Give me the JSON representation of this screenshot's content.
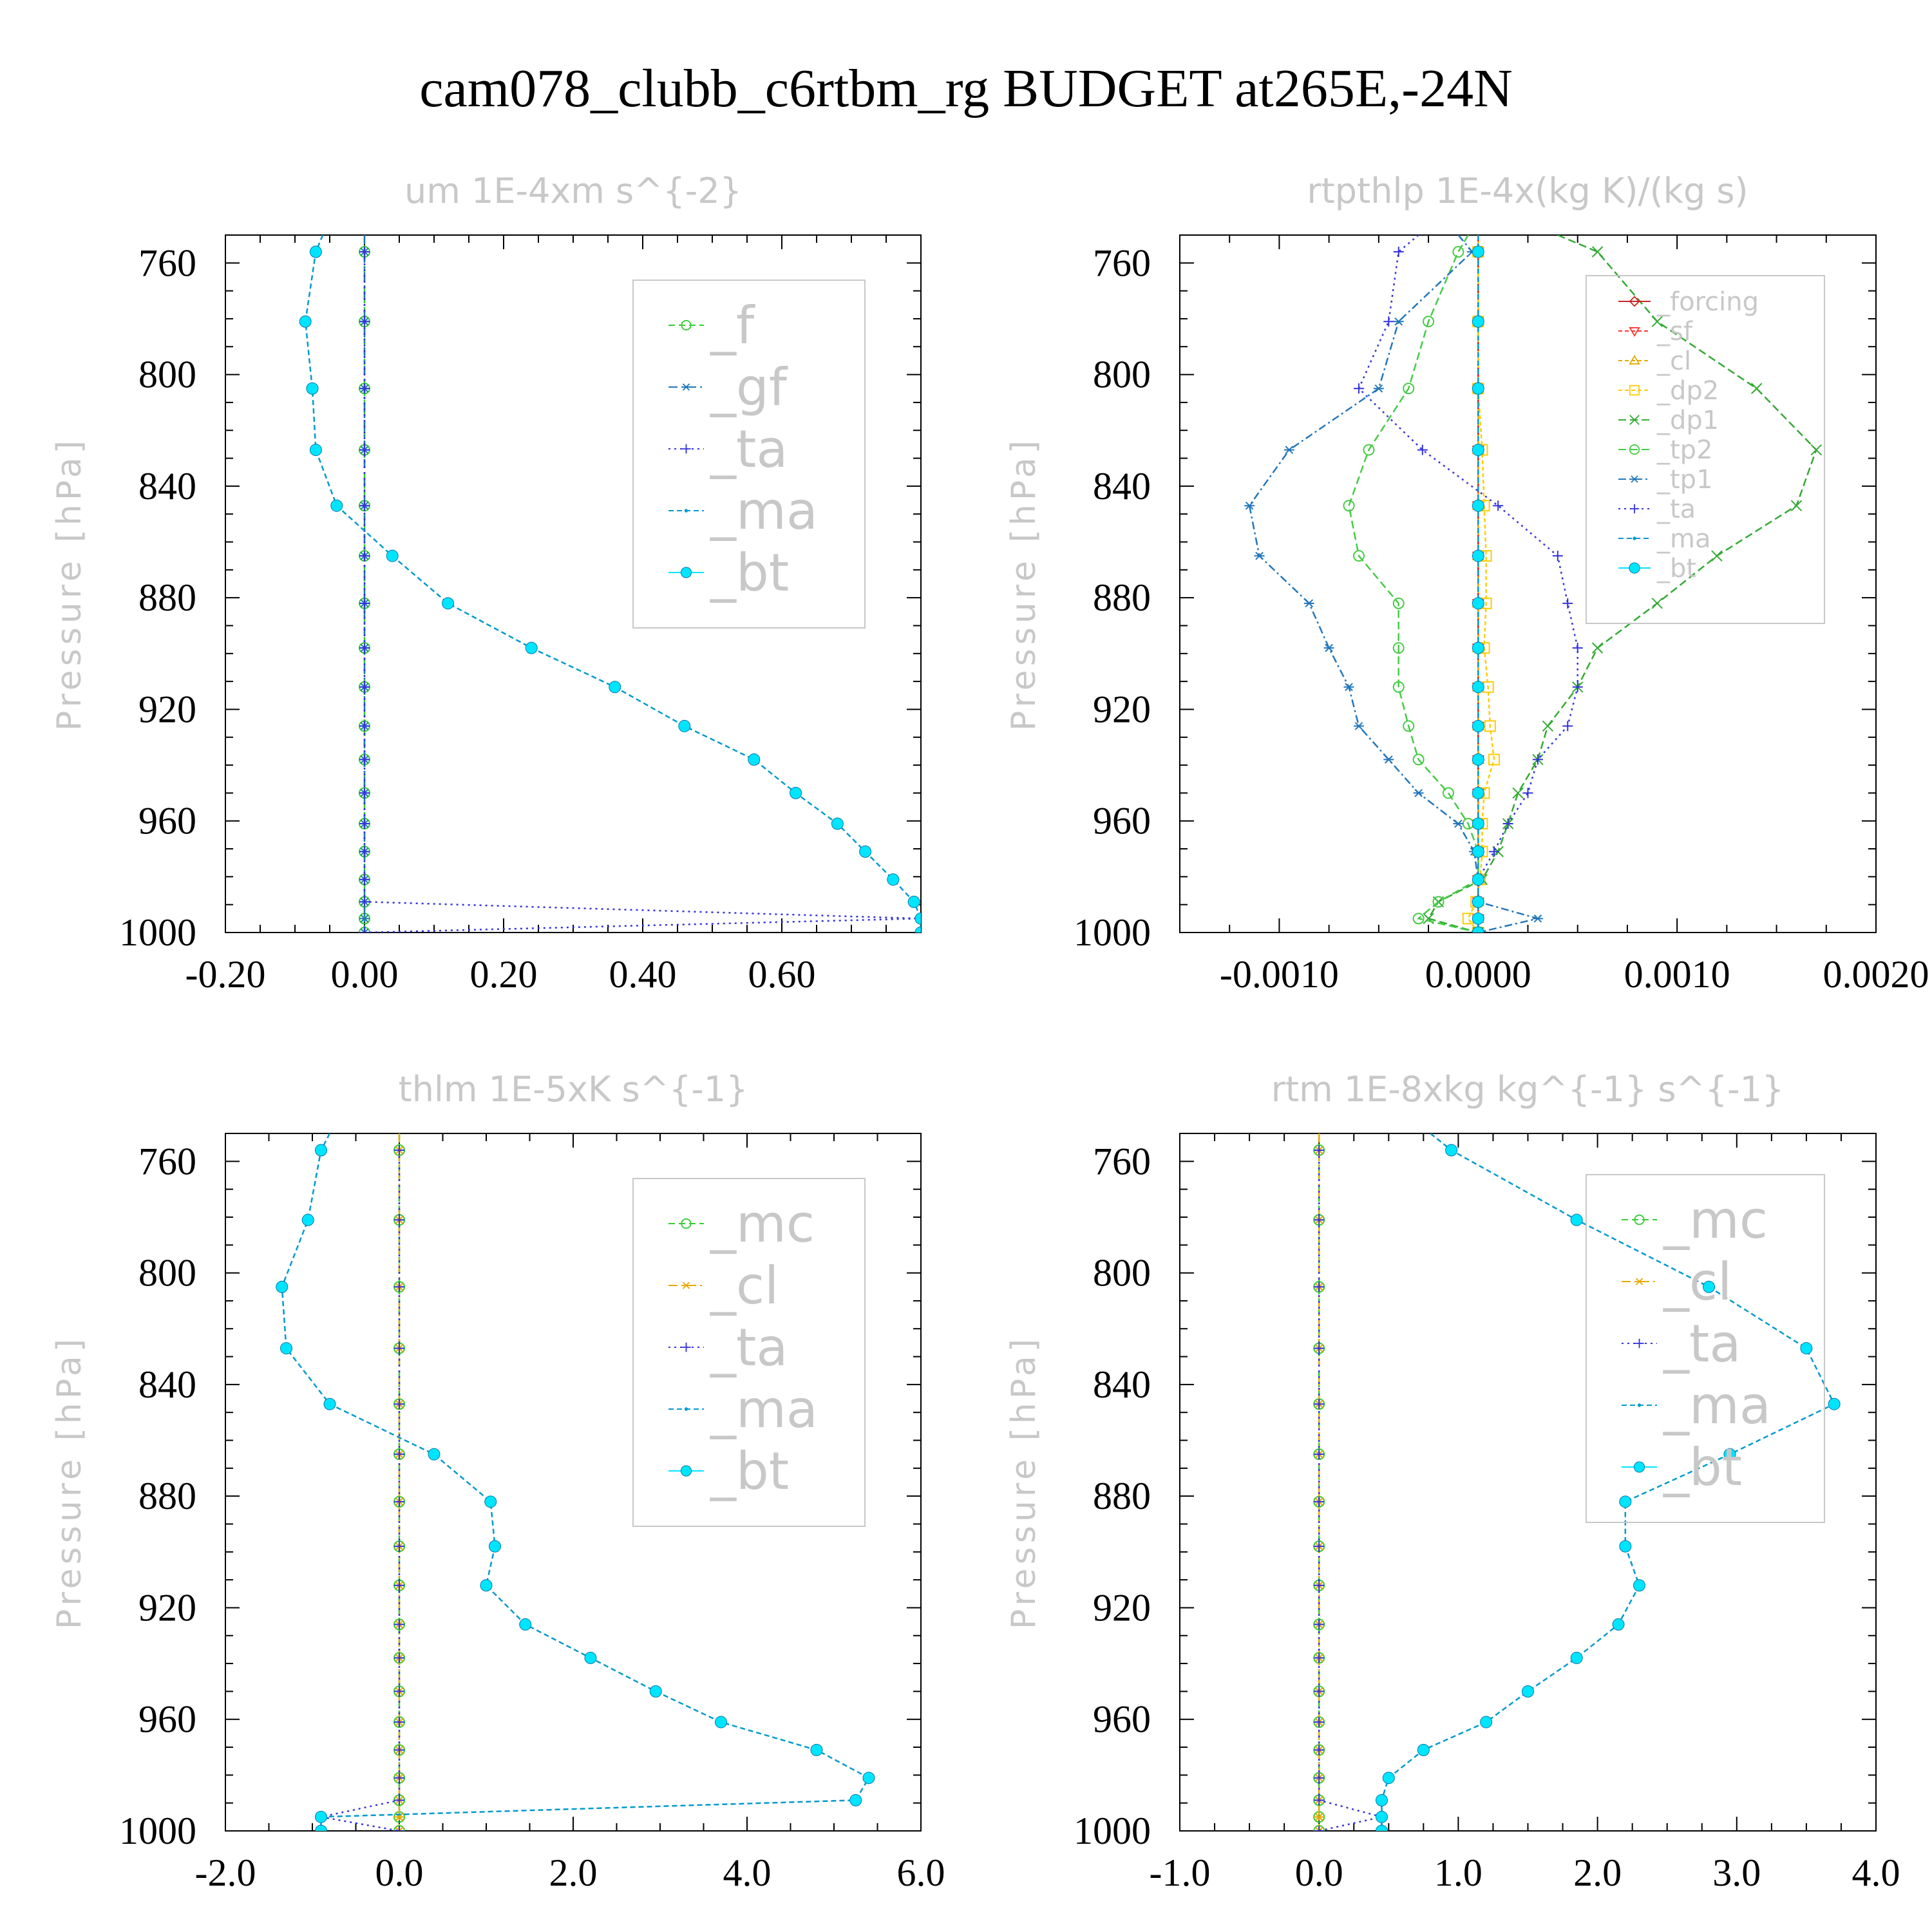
{
  "title": "cam078_clubb_c6rtbm_rg  BUDGET at265E,-24N",
  "ylabel": "Pressure [hPa]",
  "colors": {
    "_f": "#33cc33",
    "_gf": "#1f77b4",
    "_ta": "#3333dd",
    "_ma": "#009acd",
    "_bt": "#00e5ff",
    "_forcing": "#cc2222",
    "_sf": "#ff3333",
    "_cl": "#e6a800",
    "_dp2": "#ffcc00",
    "_dp1": "#33aa33",
    "_tp2": "#44cc44",
    "_tp1": "#2277bb",
    "_mc": "#33cc33"
  },
  "chart_data": [
    {
      "type": "line",
      "title": "um  1E-4xm s^{-2}",
      "xlabel": "",
      "ylabel": "Pressure [hPa]",
      "xlim": [
        -0.2,
        0.8
      ],
      "ylim": [
        1000,
        750
      ],
      "xticks": [
        "-0.20",
        "0.00",
        "0.20",
        "0.40",
        "0.60"
      ],
      "xtickvals": [
        -0.2,
        0,
        0.2,
        0.4,
        0.6
      ],
      "yticks": [
        760,
        800,
        840,
        880,
        920,
        960,
        1000
      ],
      "legend": {
        "size": "large"
      },
      "levels": [
        750,
        756,
        781,
        805,
        827,
        847,
        865,
        882,
        898,
        912,
        926,
        938,
        950,
        961,
        971,
        981,
        989,
        995,
        1000
      ],
      "series": [
        {
          "name": "_f",
          "marker": "circle-open",
          "dash": "10,6",
          "values": [
            0,
            0,
            0,
            0,
            0,
            0,
            0,
            0,
            0,
            0,
            0,
            0,
            0,
            0,
            0,
            0,
            0,
            0,
            0
          ]
        },
        {
          "name": "_gf",
          "marker": "star",
          "dash": "14,6,3,6",
          "values": [
            0,
            0,
            0,
            0,
            0,
            0,
            0,
            0,
            0,
            0,
            0,
            0,
            0,
            0,
            0,
            0,
            0,
            0,
            0
          ]
        },
        {
          "name": "_ta",
          "marker": "plus",
          "dash": "3,6",
          "values": [
            null,
            0,
            0,
            0,
            0,
            0,
            0,
            0,
            0,
            0,
            0,
            0,
            0,
            0,
            0,
            0,
            0,
            0.8,
            0
          ]
        },
        {
          "name": "_ma",
          "marker": "dot",
          "dash": "8,5",
          "values": [
            -0.06,
            -0.07,
            -0.085,
            -0.075,
            -0.07,
            -0.04,
            0.04,
            0.12,
            0.24,
            0.36,
            0.46,
            0.56,
            0.62,
            0.68,
            0.72,
            0.76,
            0.79,
            0.8,
            0.8
          ]
        },
        {
          "name": "_bt",
          "marker": "filled",
          "dash": "",
          "values": [
            null,
            -0.07,
            -0.085,
            -0.075,
            -0.07,
            -0.04,
            0.04,
            0.12,
            0.24,
            0.36,
            0.46,
            0.56,
            0.62,
            0.68,
            0.72,
            0.76,
            0.79,
            0.8,
            0.8
          ]
        }
      ]
    },
    {
      "type": "line",
      "title": "rtpthlp  1E-4x(kg K)/(kg s)",
      "xlabel": "",
      "ylabel": "Pressure [hPa]",
      "xlim": [
        -0.0015,
        0.002
      ],
      "ylim": [
        1000,
        750
      ],
      "xticks": [
        "-0.0010",
        "0.0000",
        "0.0010",
        "0.0020"
      ],
      "xtickvals": [
        -0.001,
        0,
        0.001,
        0.002
      ],
      "yticks": [
        760,
        800,
        840,
        880,
        920,
        960,
        1000
      ],
      "legend": {
        "size": "small"
      },
      "levels": [
        750,
        756,
        781,
        805,
        827,
        847,
        865,
        882,
        898,
        912,
        926,
        938,
        950,
        961,
        971,
        981,
        989,
        995,
        1000
      ],
      "series": [
        {
          "name": "_forcing",
          "marker": "diamond-open",
          "dash": "",
          "values": [
            0,
            0,
            0,
            0,
            0,
            0,
            0,
            0,
            0,
            0,
            0,
            0,
            0,
            0,
            0,
            0,
            0,
            0,
            0
          ]
        },
        {
          "name": "_sf",
          "marker": "tri-down",
          "dash": "6,4",
          "values": [
            0,
            0,
            0,
            0,
            0,
            0,
            0,
            0,
            0,
            0,
            0,
            0,
            0,
            0,
            0,
            0,
            0,
            0,
            0
          ]
        },
        {
          "name": "_cl",
          "marker": "tri-up",
          "dash": "6,4",
          "values": [
            0,
            0,
            0,
            0,
            0,
            0,
            0,
            0,
            0,
            0,
            0,
            0,
            0,
            0,
            0,
            0,
            0,
            0,
            0
          ]
        },
        {
          "name": "_dp2",
          "marker": "square-open",
          "dash": "6,4",
          "values": [
            0,
            0,
            0,
            0,
            2e-05,
            3e-05,
            4e-05,
            4e-05,
            3e-05,
            5e-05,
            6e-05,
            8e-05,
            3e-05,
            2e-05,
            2e-05,
            1e-05,
            -1e-05,
            -5e-05,
            0
          ]
        },
        {
          "name": "_dp1",
          "marker": "x",
          "dash": "12,6",
          "values": [
            0.0004,
            0.0006,
            0.0009,
            0.0014,
            0.0017,
            0.0016,
            0.0012,
            0.0009,
            0.0006,
            0.0005,
            0.00035,
            0.0003,
            0.0002,
            0.00015,
            0.0001,
            2e-05,
            -0.0002,
            -0.00025,
            0
          ]
        },
        {
          "name": "_tp2",
          "marker": "circle-open",
          "dash": "12,6",
          "values": [
            -5e-05,
            -0.0001,
            -0.00025,
            -0.00035,
            -0.00055,
            -0.00065,
            -0.0006,
            -0.0004,
            -0.0004,
            -0.0004,
            -0.00035,
            -0.0003,
            -0.00015,
            -5e-05,
            0,
            0,
            -0.0002,
            -0.0003,
            0
          ]
        },
        {
          "name": "_tp1",
          "marker": "star",
          "dash": "12,5,3,5",
          "values": [
            -0.0001,
            -3e-05,
            -0.0004,
            -0.0005,
            -0.00095,
            -0.00115,
            -0.0011,
            -0.00085,
            -0.00075,
            -0.00065,
            -0.0006,
            -0.00045,
            -0.0003,
            -0.0001,
            -2e-05,
            0,
            0,
            0.0003,
            0
          ]
        },
        {
          "name": "_ta",
          "marker": "plus",
          "dash": "3,6",
          "values": [
            -0.0003,
            -0.0004,
            -0.00045,
            -0.0006,
            -0.00028,
            0.0001,
            0.0004,
            0.00045,
            0.0005,
            0.0005,
            0.00045,
            0.0003,
            0.00025,
            0.00015,
            8e-05,
            0,
            0,
            0,
            0
          ]
        },
        {
          "name": "_ma",
          "marker": "dot",
          "dash": "8,5",
          "values": [
            0,
            0,
            0,
            0,
            0,
            0,
            0,
            0,
            0,
            0,
            0,
            0,
            0,
            0,
            0,
            0,
            0,
            0,
            0
          ]
        },
        {
          "name": "_bt",
          "marker": "filled",
          "dash": "",
          "values": [
            null,
            0,
            0,
            0,
            0,
            0,
            0,
            0,
            0,
            0,
            0,
            0,
            0,
            0,
            0,
            0,
            0,
            0,
            0
          ]
        }
      ]
    },
    {
      "type": "line",
      "title": "thlm  1E-5xK s^{-1}",
      "xlabel": "",
      "ylabel": "Pressure [hPa]",
      "xlim": [
        -2,
        6
      ],
      "ylim": [
        1000,
        750
      ],
      "xticks": [
        "-2.0",
        "0.0",
        "2.0",
        "4.0",
        "6.0"
      ],
      "xtickvals": [
        -2,
        0,
        2,
        4,
        6
      ],
      "yticks": [
        760,
        800,
        840,
        880,
        920,
        960,
        1000
      ],
      "legend": {
        "size": "large"
      },
      "levels": [
        750,
        756,
        781,
        805,
        827,
        847,
        865,
        882,
        898,
        912,
        926,
        938,
        950,
        961,
        971,
        981,
        989,
        995,
        1000
      ],
      "series": [
        {
          "name": "_mc",
          "marker": "circle-open",
          "dash": "10,6",
          "values": [
            0,
            0,
            0,
            0,
            0,
            0,
            0,
            0,
            0,
            0,
            0,
            0,
            0,
            0,
            0,
            0,
            0,
            0,
            0
          ]
        },
        {
          "name": "_cl",
          "marker": "star",
          "dash": "14,6,3,6",
          "values": [
            0,
            0,
            0,
            0,
            0,
            0,
            0,
            0,
            0,
            0,
            0,
            0,
            0,
            0,
            0,
            0,
            0,
            0,
            0
          ]
        },
        {
          "name": "_ta",
          "marker": "plus",
          "dash": "3,6",
          "values": [
            null,
            0,
            0,
            0,
            0,
            0,
            0,
            0,
            0,
            0,
            0,
            0,
            0,
            0,
            0,
            0,
            0,
            -0.9,
            0
          ]
        },
        {
          "name": "_ma",
          "marker": "dot",
          "dash": "8,5",
          "values": [
            -0.8,
            -0.9,
            -1.05,
            -1.35,
            -1.3,
            -0.8,
            0.4,
            1.05,
            1.1,
            1.0,
            1.45,
            2.2,
            2.95,
            3.7,
            4.8,
            5.4,
            5.25,
            -0.9,
            -0.9
          ]
        },
        {
          "name": "_bt",
          "marker": "filled",
          "dash": "",
          "values": [
            null,
            -0.9,
            -1.05,
            -1.35,
            -1.3,
            -0.8,
            0.4,
            1.05,
            1.1,
            1.0,
            1.45,
            2.2,
            2.95,
            3.7,
            4.8,
            5.4,
            5.25,
            -0.9,
            -0.9
          ]
        }
      ]
    },
    {
      "type": "line",
      "title": "rtm  1E-8xkg kg^{-1} s^{-1}",
      "xlabel": "",
      "ylabel": "Pressure [hPa]",
      "xlim": [
        -1,
        4
      ],
      "ylim": [
        1000,
        750
      ],
      "xticks": [
        "-1.0",
        "0.0",
        "1.0",
        "2.0",
        "3.0",
        "4.0"
      ],
      "xtickvals": [
        -1,
        0,
        1,
        2,
        3,
        4
      ],
      "yticks": [
        760,
        800,
        840,
        880,
        920,
        960,
        1000
      ],
      "legend": {
        "size": "large"
      },
      "levels": [
        750,
        756,
        781,
        805,
        827,
        847,
        865,
        882,
        898,
        912,
        926,
        938,
        950,
        961,
        971,
        981,
        989,
        995,
        1000
      ],
      "series": [
        {
          "name": "_mc",
          "marker": "circle-open",
          "dash": "10,6",
          "values": [
            0,
            0,
            0,
            0,
            0,
            0,
            0,
            0,
            0,
            0,
            0,
            0,
            0,
            0,
            0,
            0,
            0,
            0,
            0
          ]
        },
        {
          "name": "_cl",
          "marker": "star",
          "dash": "14,6,3,6",
          "values": [
            0,
            0,
            0,
            0,
            0,
            0,
            0,
            0,
            0,
            0,
            0,
            0,
            0,
            0,
            0,
            0,
            0,
            0,
            0
          ]
        },
        {
          "name": "_ta",
          "marker": "plus",
          "dash": "3,6",
          "values": [
            null,
            0,
            0,
            0,
            0,
            0,
            0,
            0,
            0,
            0,
            0,
            0,
            0,
            0,
            0,
            0,
            0,
            0.45,
            0
          ]
        },
        {
          "name": "_ma",
          "marker": "dot",
          "dash": "8,5",
          "values": [
            0.8,
            0.95,
            1.85,
            2.8,
            3.5,
            3.7,
            2.95,
            2.2,
            2.2,
            2.3,
            2.15,
            1.85,
            1.5,
            1.2,
            0.75,
            0.5,
            0.45,
            0.45,
            0.45
          ]
        },
        {
          "name": "_bt",
          "marker": "filled",
          "dash": "",
          "values": [
            null,
            0.95,
            1.85,
            2.8,
            3.5,
            3.7,
            2.95,
            2.2,
            2.2,
            2.3,
            2.15,
            1.85,
            1.5,
            1.2,
            0.75,
            0.5,
            0.45,
            0.45,
            0.45
          ]
        }
      ]
    }
  ]
}
